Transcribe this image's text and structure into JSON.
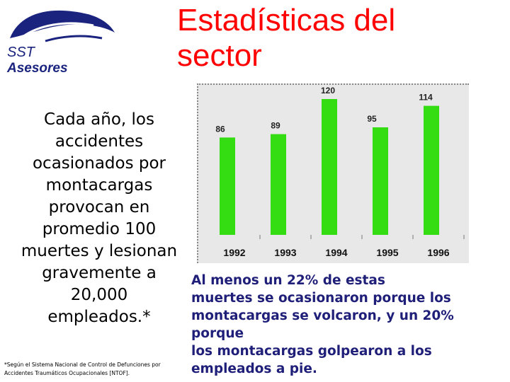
{
  "logo": {
    "line1": "SST",
    "line2": "Asesores",
    "icon": "winged-helmet-logo"
  },
  "title": {
    "line1": "Estadísticas del",
    "line2": "sector"
  },
  "left_text": {
    "lines": [
      "Cada año, los",
      "accidentes",
      "ocasionados por",
      "montacargas",
      "provocan en",
      "promedio 100",
      "muertes y lesionan",
      "gravemente a",
      "20,000",
      "empleados.*"
    ]
  },
  "footnote": {
    "line1": "*Según el Sistema Nacional de Control de Defunciones por",
    "line2": "Accidentes Traumáticos Ocupacionales [NTOF]."
  },
  "right_text": {
    "lines": [
      "Al menos un 22% de estas",
      "muertes se ocasionaron porque los",
      "montacargas se volcaron, y un 20% porque",
      "los montacargas golpearon a los",
      "empleados a pie."
    ]
  },
  "colors": {
    "title": "#ff0000",
    "bars": "#33dd11",
    "chart_bg": "#e8e8e8",
    "right_text": "#1f1f7a"
  },
  "chart_data": {
    "type": "bar",
    "categories": [
      "1992",
      "1993",
      "1994",
      "1995",
      "1996"
    ],
    "values": [
      86,
      89,
      120,
      95,
      114
    ],
    "title": "",
    "xlabel": "",
    "ylabel": "",
    "ylim": [
      0,
      125
    ],
    "grid": false
  }
}
